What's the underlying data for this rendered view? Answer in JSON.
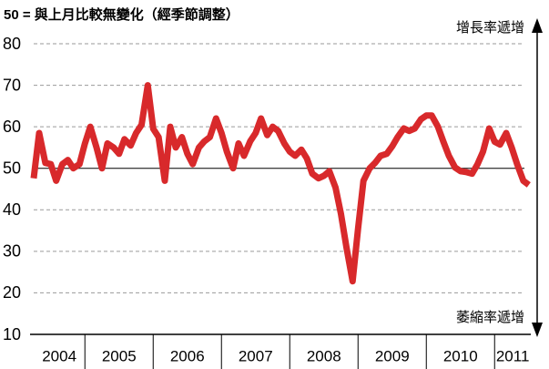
{
  "chart_data": {
    "type": "line",
    "title": "50 = 與上月比較無變化（經季節調整）",
    "annotations": {
      "top": "增長率遞增",
      "bottom": "萎縮率遞增"
    },
    "x": [
      2004.25,
      2004.33,
      2004.42,
      2004.5,
      2004.58,
      2004.67,
      2004.75,
      2004.83,
      2004.92,
      2005,
      2005.08,
      2005.17,
      2005.25,
      2005.33,
      2005.42,
      2005.5,
      2005.58,
      2005.67,
      2005.75,
      2005.83,
      2005.92,
      2006,
      2006.08,
      2006.17,
      2006.25,
      2006.33,
      2006.42,
      2006.5,
      2006.58,
      2006.67,
      2006.75,
      2006.83,
      2006.92,
      2007,
      2007.08,
      2007.17,
      2007.25,
      2007.33,
      2007.42,
      2007.5,
      2007.58,
      2007.67,
      2007.75,
      2007.83,
      2007.92,
      2008,
      2008.08,
      2008.17,
      2008.25,
      2008.33,
      2008.42,
      2008.5,
      2008.58,
      2008.67,
      2008.75,
      2008.83,
      2008.92,
      2009,
      2009.08,
      2009.17,
      2009.25,
      2009.33,
      2009.42,
      2009.5,
      2009.58,
      2009.67,
      2009.75,
      2009.83,
      2009.92,
      2010,
      2010.08,
      2010.17,
      2010.25,
      2010.33,
      2010.42,
      2010.5,
      2010.58,
      2010.67,
      2010.75,
      2010.83,
      2010.92,
      2011,
      2011.08,
      2011.17,
      2011.25,
      2011.33,
      2011.42,
      2011.5
    ],
    "series": [
      {
        "color": "#d8292b",
        "values": [
          47.6,
          58.5,
          51.3,
          51,
          47,
          51,
          52,
          50,
          51,
          56,
          60,
          55,
          50,
          56,
          55,
          53.5,
          57,
          55.5,
          58.5,
          60.5,
          70,
          59.5,
          57.5,
          47,
          60,
          55,
          57.5,
          53.5,
          51,
          55,
          56.5,
          57.5,
          62,
          58.5,
          54,
          50,
          56,
          53,
          56.5,
          58.5,
          62,
          58,
          60,
          59,
          56,
          54,
          53,
          54.5,
          52.4,
          48.7,
          47.6,
          48.2,
          49.3,
          45.4,
          39,
          31,
          22.8,
          35.5,
          47,
          50,
          51.3,
          53,
          53.5,
          55.3,
          57.5,
          59.6,
          59,
          59.6,
          61.8,
          62.7,
          62.7,
          60,
          56.4,
          53,
          50.2,
          49.3,
          49.1,
          48.7,
          51,
          54,
          59.6,
          56.4,
          55.7,
          58.5,
          55,
          51,
          47,
          46
        ]
      }
    ],
    "xlim": [
      2004.25,
      2011.53
    ],
    "xticks": [
      2004,
      2005,
      2006,
      2007,
      2008,
      2009,
      2010,
      2011
    ],
    "ylim": [
      10,
      80
    ],
    "yticks": [
      10,
      20,
      30,
      40,
      50,
      60,
      70,
      80
    ],
    "reference_line": 50,
    "grid": true
  }
}
